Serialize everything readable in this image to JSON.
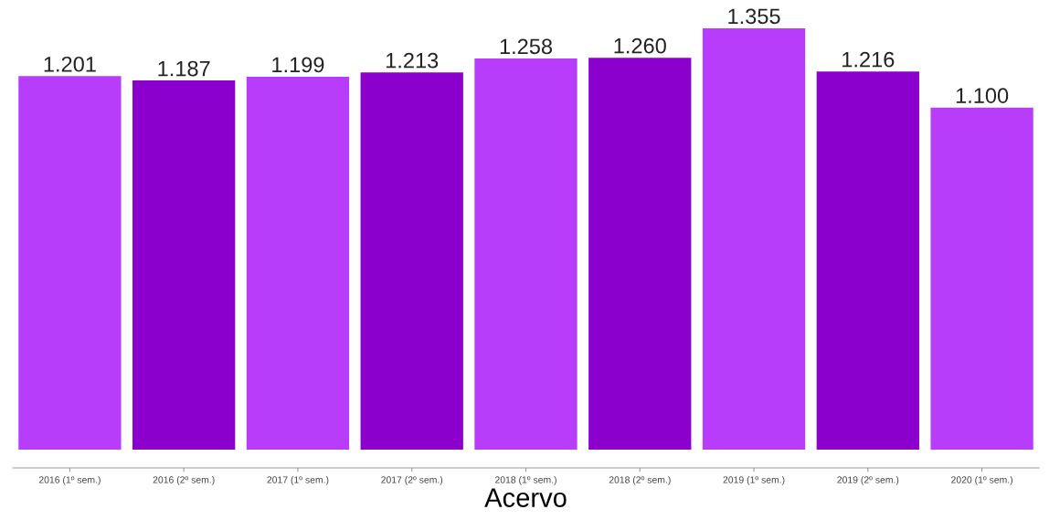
{
  "chart_data": {
    "type": "bar",
    "xlabel": "Acervo",
    "categories": [
      "2016 (1º sem.)",
      "2016 (2º sem.)",
      "2017 (1º sem.)",
      "2017 (2º sem.)",
      "2018 (1º sem.)",
      "2018 (2º sem.)",
      "2019 (1º sem.)",
      "2019 (2º sem.)",
      "2020 (1º sem.)"
    ],
    "values": [
      1201,
      1187,
      1199,
      1213,
      1258,
      1260,
      1355,
      1216,
      1100
    ],
    "value_labels": [
      "1.201",
      "1.187",
      "1.199",
      "1.213",
      "1.258",
      "1.260",
      "1.355",
      "1.216",
      "1.100"
    ],
    "colors": [
      "#b83dfa",
      "#8b00cc",
      "#b83dfa",
      "#8b00cc",
      "#b83dfa",
      "#8b00cc",
      "#b83dfa",
      "#8b00cc",
      "#b83dfa"
    ],
    "tick_labels": "x",
    "grid": false,
    "legend": false
  }
}
